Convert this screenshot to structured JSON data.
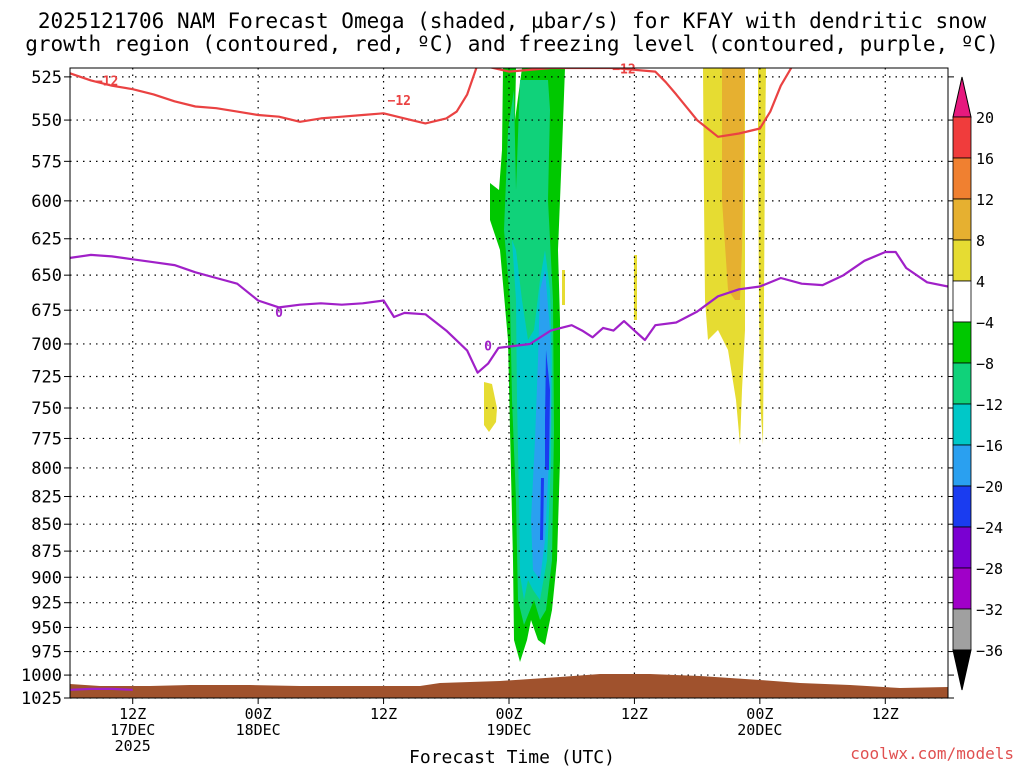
{
  "chart_data": {
    "type": "heatmap",
    "title_line1": "2025121706 NAM Forecast Omega (shaded, µbar/s) for KFAY with dendritic snow",
    "title_line2": "growth region (contoured, red, ºC) and freezing level (contoured, purple, ºC)",
    "xlabel": "Forecast Time (UTC)",
    "xlim_hours": [
      -2,
      82
    ],
    "x_ticks": [
      {
        "h": 4,
        "lines": [
          "12Z",
          "17DEC",
          "2025"
        ]
      },
      {
        "h": 16,
        "lines": [
          "00Z",
          "18DEC"
        ]
      },
      {
        "h": 28,
        "lines": [
          "12Z"
        ]
      },
      {
        "h": 40,
        "lines": [
          "00Z",
          "19DEC"
        ]
      },
      {
        "h": 52,
        "lines": [
          "12Z"
        ]
      },
      {
        "h": 64,
        "lines": [
          "00Z",
          "20DEC"
        ]
      },
      {
        "h": 76,
        "lines": [
          "12Z"
        ]
      }
    ],
    "ylim_hpa": [
      1025,
      520
    ],
    "y_ticks": [
      525,
      550,
      575,
      600,
      625,
      650,
      675,
      700,
      725,
      750,
      775,
      800,
      825,
      850,
      875,
      900,
      925,
      950,
      975,
      1000,
      1025
    ],
    "colorbar": {
      "labels": [
        "20",
        "16",
        "12",
        "8",
        "4",
        "−4",
        "−8",
        "−12",
        "−16",
        "−20",
        "−24",
        "−28",
        "−32",
        "−36"
      ],
      "colors": [
        "#f03c3c",
        "#f08030",
        "#e6b030",
        "#e6dc32",
        "#ffffff",
        "#00c800",
        "#10d27a",
        "#00c8c8",
        "#2aa0f0",
        "#1a3cf0",
        "#7a00d2",
        "#a000c8",
        "#a0a0a0"
      ],
      "top_arrow_color": "#e6197e",
      "bottom_arrow_color": "#000000"
    },
    "series": [
      {
        "name": "dendritic snow growth region -12 C",
        "color": "#ea4242",
        "label": "−12",
        "points": [
          [
            -2,
            523
          ],
          [
            0,
            527
          ],
          [
            2,
            530
          ],
          [
            4,
            532
          ],
          [
            6,
            535
          ],
          [
            8,
            539
          ],
          [
            10,
            542
          ],
          [
            12,
            543
          ],
          [
            14,
            545
          ],
          [
            16,
            547
          ],
          [
            18,
            548
          ],
          [
            20,
            551
          ],
          [
            22,
            549
          ],
          [
            24,
            548
          ],
          [
            26,
            547
          ],
          [
            28,
            546
          ],
          [
            30,
            549
          ],
          [
            32,
            552
          ],
          [
            34,
            549
          ],
          [
            35,
            545
          ],
          [
            36,
            535
          ],
          [
            37,
            518
          ],
          [
            40,
            522
          ],
          [
            44,
            520
          ],
          [
            50,
            520
          ],
          [
            54,
            522
          ],
          [
            55,
            528
          ],
          [
            56,
            535
          ],
          [
            58,
            550
          ],
          [
            60,
            560
          ],
          [
            62,
            558
          ],
          [
            64,
            555
          ],
          [
            65,
            545
          ],
          [
            66,
            530
          ],
          [
            67,
            520
          ]
        ]
      },
      {
        "name": "freezing level 0 C",
        "color": "#a020c8",
        "label": "0",
        "points": [
          [
            -2,
            638
          ],
          [
            0,
            636
          ],
          [
            2,
            637
          ],
          [
            4,
            639
          ],
          [
            6,
            641
          ],
          [
            8,
            643
          ],
          [
            10,
            648
          ],
          [
            12,
            652
          ],
          [
            14,
            656
          ],
          [
            16,
            668
          ],
          [
            18,
            673
          ],
          [
            20,
            671
          ],
          [
            22,
            670
          ],
          [
            24,
            671
          ],
          [
            26,
            670
          ],
          [
            28,
            668
          ],
          [
            29,
            680
          ],
          [
            30,
            677
          ],
          [
            32,
            678
          ],
          [
            34,
            690
          ],
          [
            36,
            705
          ],
          [
            37,
            722
          ],
          [
            38,
            715
          ],
          [
            39,
            703
          ],
          [
            40,
            702
          ],
          [
            42,
            700
          ],
          [
            44,
            690
          ],
          [
            46,
            686
          ],
          [
            47,
            690
          ],
          [
            48,
            695
          ],
          [
            49,
            688
          ],
          [
            50,
            690
          ],
          [
            51,
            683
          ],
          [
            52,
            690
          ],
          [
            53,
            697
          ],
          [
            54,
            686
          ],
          [
            56,
            684
          ],
          [
            58,
            676
          ],
          [
            60,
            665
          ],
          [
            62,
            660
          ],
          [
            64,
            658
          ],
          [
            66,
            652
          ],
          [
            68,
            656
          ],
          [
            70,
            657
          ],
          [
            72,
            650
          ],
          [
            74,
            640
          ],
          [
            76,
            634
          ],
          [
            77,
            634
          ],
          [
            78,
            645
          ],
          [
            80,
            655
          ],
          [
            82,
            658
          ]
        ]
      },
      {
        "name": "freezing level 0 C (surface)",
        "color": "#a020c8",
        "points": [
          [
            -2,
            1016
          ],
          [
            0,
            1015
          ],
          [
            2,
            1015
          ],
          [
            4,
            1016
          ]
        ]
      }
    ],
    "omega_regions": [
      {
        "level": "-8 to -4",
        "color": "#00c800"
      },
      {
        "level": "-12 to -8",
        "color": "#10d27a"
      },
      {
        "level": "-16 to -12",
        "color": "#00c8c8"
      },
      {
        "level": "-20 to -16",
        "color": "#2aa0f0"
      },
      {
        "level": "-24 to -20",
        "color": "#1a3cf0"
      },
      {
        "level": "4 to 8",
        "color": "#e6dc32"
      },
      {
        "level": "8 to 12",
        "color": "#e6b030"
      }
    ]
  },
  "credit": "coolwx.com/models"
}
